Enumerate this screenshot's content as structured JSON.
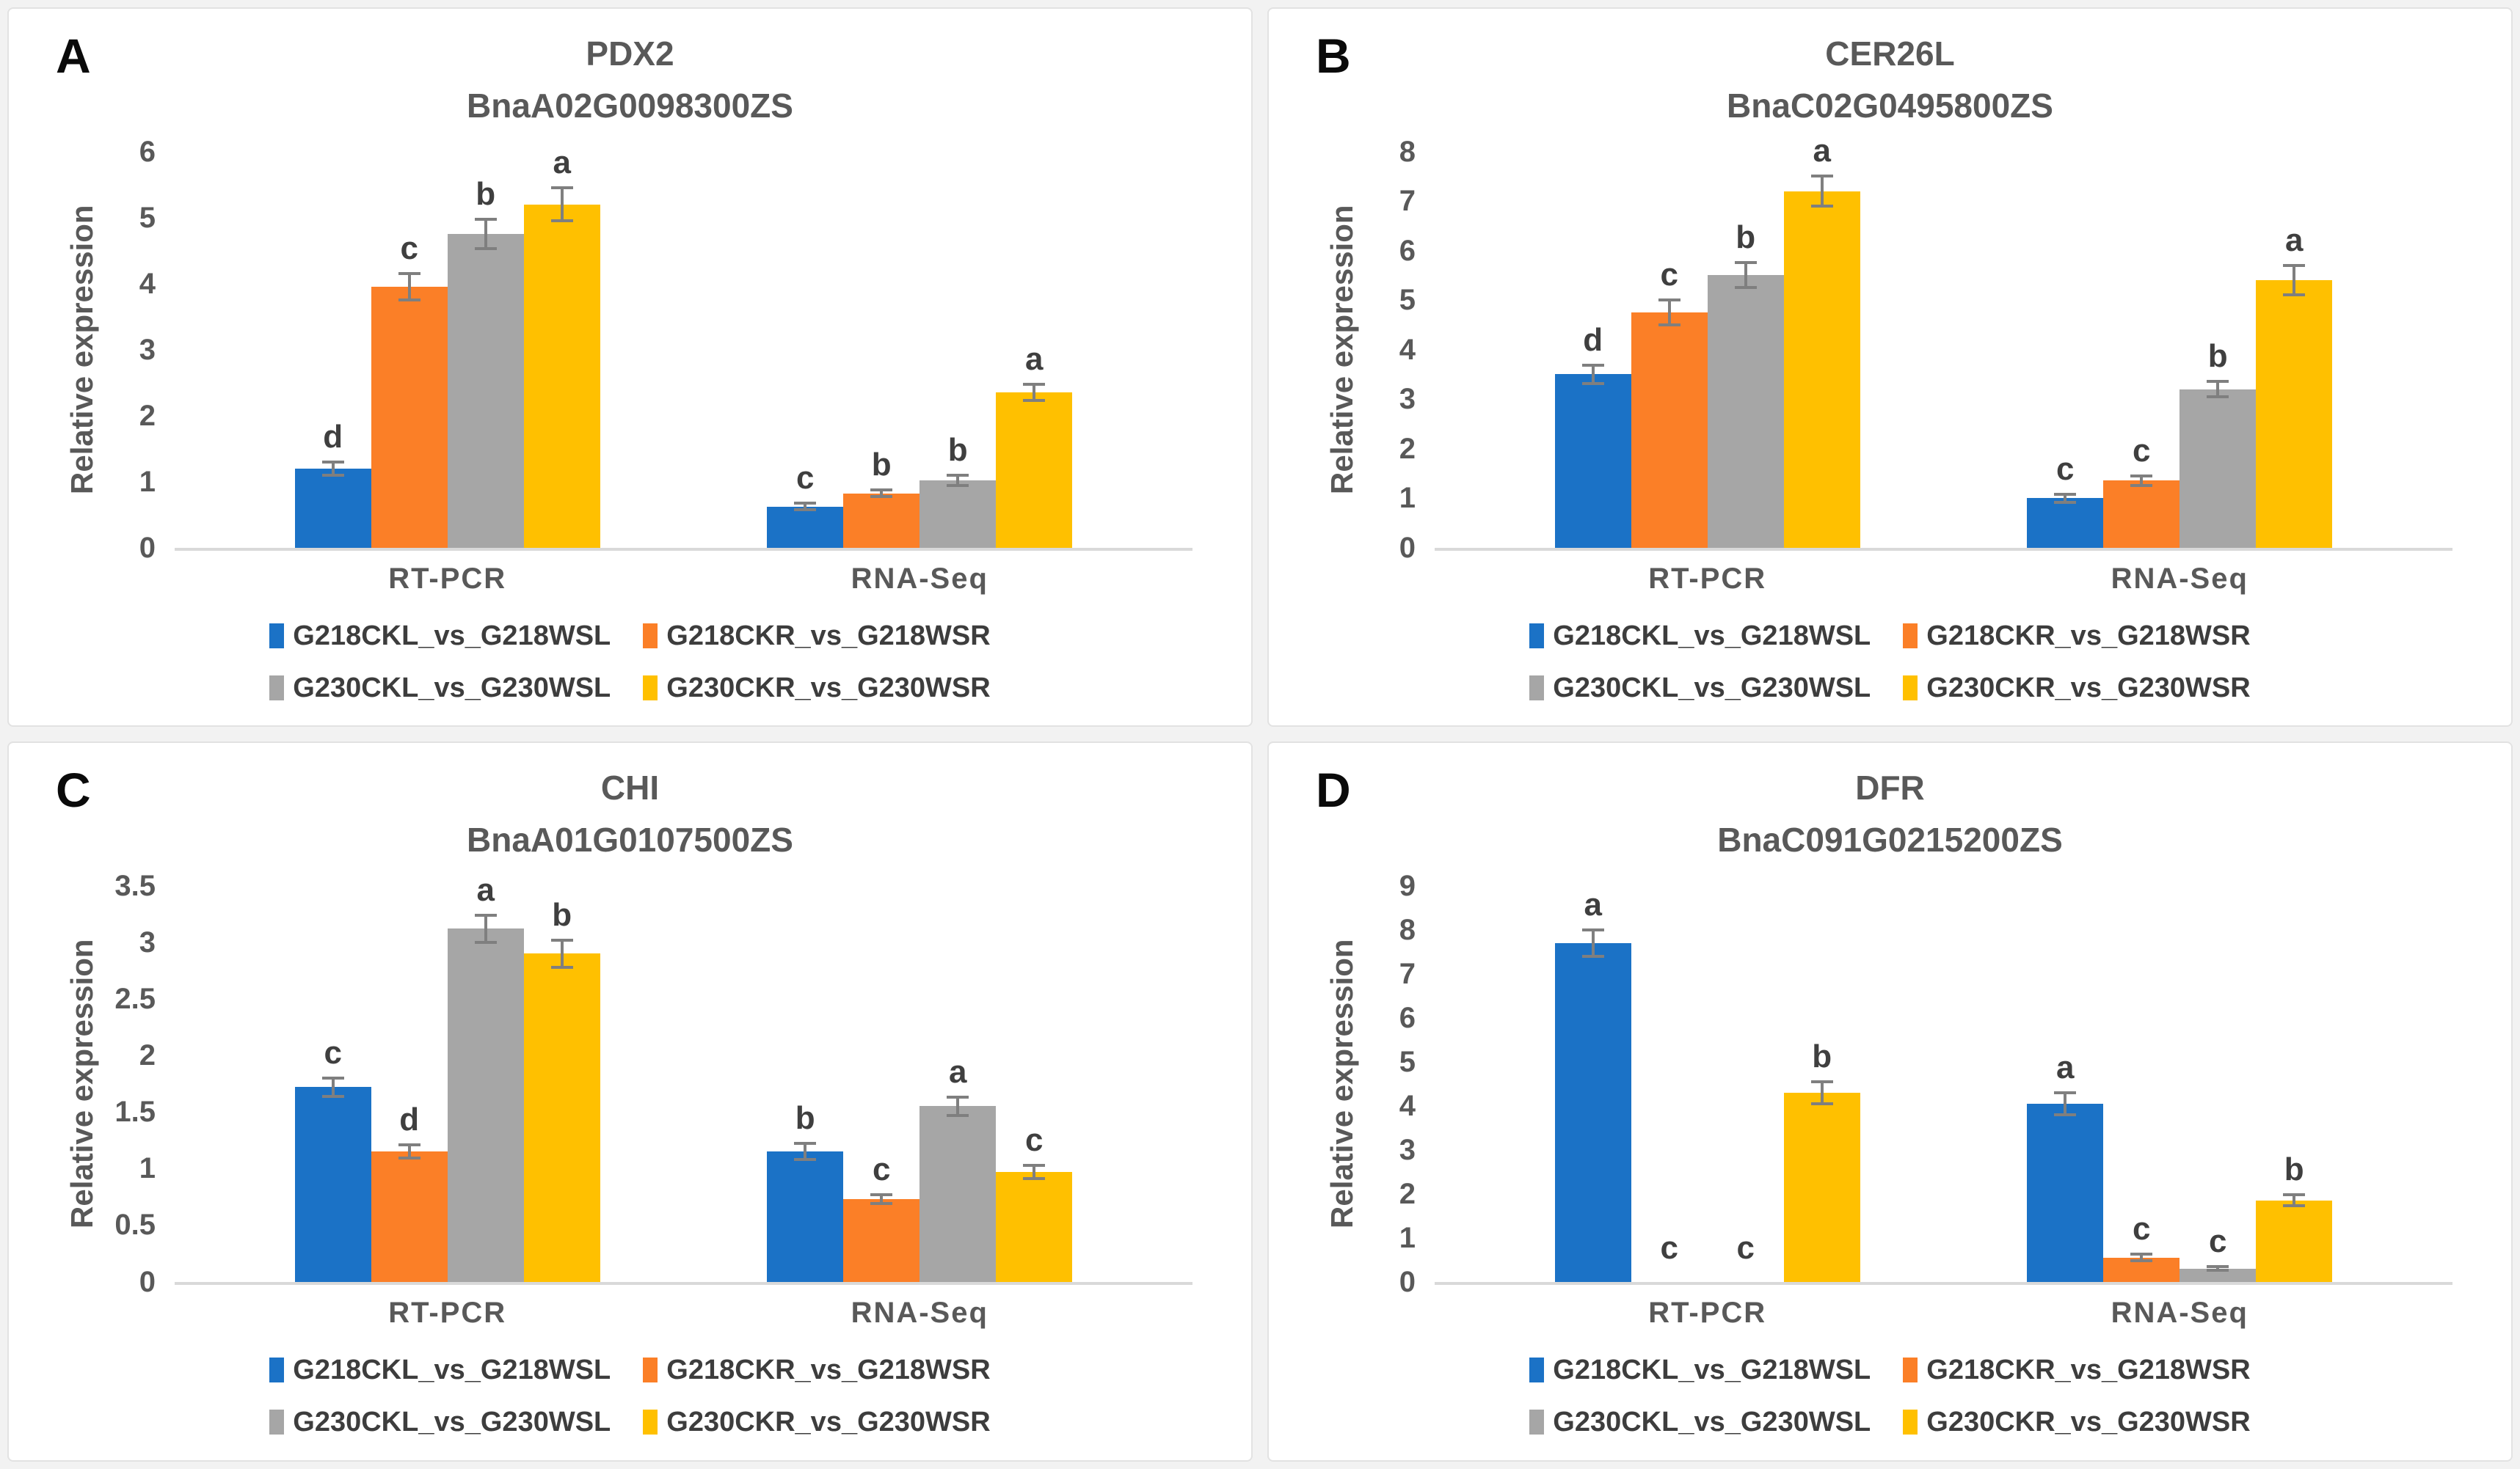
{
  "figure": {
    "ylabel": "Relative expression",
    "categories": [
      "RT-PCR",
      "RNA-Seq"
    ],
    "error_bar_color": "#7f7f7f",
    "series_names": [
      "G218CKL_vs_G218WSL",
      "G218CKR_vs_G218WSR",
      "G230CKL_vs_G230WSL",
      "G230CKR_vs_G230WSR"
    ],
    "series_colors": [
      "#1B72C6",
      "#FB7F27",
      "#A6A6A6",
      "#FFC000"
    ]
  },
  "chart_data": [
    {
      "panel": "A",
      "type": "bar",
      "title": "PDX2",
      "subtitle": "BnaA02G0098300ZS",
      "ylabel": "Relative expression",
      "categories": [
        "RT-PCR",
        "RNA-Seq"
      ],
      "ylim": [
        0,
        6
      ],
      "yticks": [
        "0",
        "1",
        "2",
        "3",
        "4",
        "5",
        "6"
      ],
      "legend_position": "bottom",
      "grid": false,
      "series": [
        {
          "name": "G218CKL_vs_G218WSL",
          "color": "#1B72C6",
          "values": [
            1.2,
            0.62
          ],
          "errors": [
            0.1,
            0.05
          ],
          "letters": [
            "d",
            "c"
          ]
        },
        {
          "name": "G218CKR_vs_G218WSR",
          "color": "#FB7F27",
          "values": [
            3.95,
            0.82
          ],
          "errors": [
            0.2,
            0.05
          ],
          "letters": [
            "c",
            "b"
          ]
        },
        {
          "name": "G230CKL_vs_G230WSL",
          "color": "#A6A6A6",
          "values": [
            4.75,
            1.02
          ],
          "errors": [
            0.22,
            0.08
          ],
          "letters": [
            "b",
            "b"
          ]
        },
        {
          "name": "G230CKR_vs_G230WSR",
          "color": "#FFC000",
          "values": [
            5.2,
            2.35
          ],
          "errors": [
            0.25,
            0.12
          ],
          "letters": [
            "a",
            "a"
          ]
        }
      ]
    },
    {
      "panel": "B",
      "type": "bar",
      "title": "CER26L",
      "subtitle": "BnaC02G0495800ZS",
      "ylabel": "Relative expression",
      "categories": [
        "RT-PCR",
        "RNA-Seq"
      ],
      "ylim": [
        0,
        8
      ],
      "yticks": [
        "0",
        "1",
        "2",
        "3",
        "4",
        "5",
        "6",
        "7",
        "8"
      ],
      "legend_position": "bottom",
      "grid": false,
      "series": [
        {
          "name": "G218CKL_vs_G218WSL",
          "color": "#1B72C6",
          "values": [
            3.5,
            1.0
          ],
          "errors": [
            0.18,
            0.08
          ],
          "letters": [
            "d",
            "c"
          ]
        },
        {
          "name": "G218CKR_vs_G218WSR",
          "color": "#FB7F27",
          "values": [
            4.75,
            1.35
          ],
          "errors": [
            0.25,
            0.1
          ],
          "letters": [
            "c",
            "c"
          ]
        },
        {
          "name": "G230CKL_vs_G230WSL",
          "color": "#A6A6A6",
          "values": [
            5.5,
            3.2
          ],
          "errors": [
            0.25,
            0.15
          ],
          "letters": [
            "b",
            "b"
          ]
        },
        {
          "name": "G230CKR_vs_G230WSR",
          "color": "#FFC000",
          "values": [
            7.2,
            5.4
          ],
          "errors": [
            0.3,
            0.3
          ],
          "letters": [
            "a",
            "a"
          ]
        }
      ]
    },
    {
      "panel": "C",
      "type": "bar",
      "title": "CHI",
      "subtitle": "BnaA01G0107500ZS",
      "ylabel": "Relative expression",
      "categories": [
        "RT-PCR",
        "RNA-Seq"
      ],
      "ylim": [
        0,
        3.5
      ],
      "yticks": [
        "0",
        "0.5",
        "1",
        "1.5",
        "2",
        "2.5",
        "3",
        "3.5"
      ],
      "legend_position": "bottom",
      "grid": false,
      "series": [
        {
          "name": "G218CKL_vs_G218WSL",
          "color": "#1B72C6",
          "values": [
            1.72,
            1.15
          ],
          "errors": [
            0.08,
            0.07
          ],
          "letters": [
            "c",
            "b"
          ]
        },
        {
          "name": "G218CKR_vs_G218WSR",
          "color": "#FB7F27",
          "values": [
            1.15,
            0.73
          ],
          "errors": [
            0.06,
            0.04
          ],
          "letters": [
            "d",
            "c"
          ]
        },
        {
          "name": "G230CKL_vs_G230WSL",
          "color": "#A6A6A6",
          "values": [
            3.12,
            1.55
          ],
          "errors": [
            0.12,
            0.08
          ],
          "letters": [
            "a",
            "a"
          ]
        },
        {
          "name": "G230CKR_vs_G230WSR",
          "color": "#FFC000",
          "values": [
            2.9,
            0.97
          ],
          "errors": [
            0.12,
            0.06
          ],
          "letters": [
            "b",
            "c"
          ]
        }
      ]
    },
    {
      "panel": "D",
      "type": "bar",
      "title": "DFR",
      "subtitle": "BnaC091G0215200ZS",
      "ylabel": "Relative expression",
      "categories": [
        "RT-PCR",
        "RNA-Seq"
      ],
      "ylim": [
        0,
        9
      ],
      "yticks": [
        "0",
        "1",
        "2",
        "3",
        "4",
        "5",
        "6",
        "7",
        "8",
        "9"
      ],
      "legend_position": "bottom",
      "grid": false,
      "series": [
        {
          "name": "G218CKL_vs_G218WSL",
          "color": "#1B72C6",
          "values": [
            7.7,
            4.05
          ],
          "errors": [
            0.3,
            0.25
          ],
          "letters": [
            "a",
            "a"
          ]
        },
        {
          "name": "G218CKR_vs_G218WSR",
          "color": "#FB7F27",
          "values": [
            0,
            0.55
          ],
          "errors": [
            0,
            0.08
          ],
          "letters": [
            "c",
            "c"
          ]
        },
        {
          "name": "G230CKL_vs_G230WSL",
          "color": "#A6A6A6",
          "values": [
            0,
            0.3
          ],
          "errors": [
            0,
            0.04
          ],
          "letters": [
            "c",
            "c"
          ]
        },
        {
          "name": "G230CKR_vs_G230WSR",
          "color": "#FFC000",
          "values": [
            4.3,
            1.85
          ],
          "errors": [
            0.25,
            0.12
          ],
          "letters": [
            "b",
            "b"
          ]
        }
      ]
    }
  ]
}
